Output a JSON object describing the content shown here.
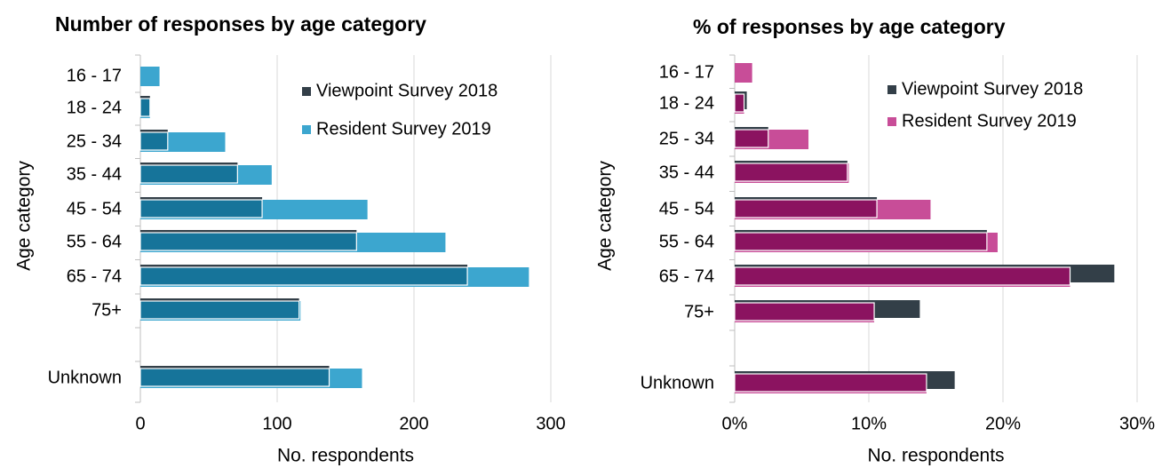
{
  "chart_data": [
    {
      "type": "bar",
      "title": "Number of responses by age category",
      "xlabel": "No. respondents",
      "ylabel": "Age category",
      "xlim": [
        0,
        300
      ],
      "xticks": [
        "0",
        "100",
        "200",
        "300"
      ],
      "categories": [
        "16 - 17",
        "18 - 24",
        "25 - 34",
        "35 - 44",
        "45 - 54",
        "55 - 64",
        "65 - 74",
        "75+",
        "",
        "Unknown"
      ],
      "series": [
        {
          "name": "Viewpoint Survey 2018",
          "color": "#333f48",
          "values": [
            0,
            7,
            20,
            71,
            89,
            158,
            239,
            116,
            null,
            138
          ]
        },
        {
          "name": "Resident Survey 2019",
          "color": "#3ca6cf",
          "values": [
            14,
            7,
            62,
            96,
            166,
            223,
            284,
            117,
            null,
            162
          ]
        }
      ],
      "overlap_color": "#16749a",
      "grid": "vertical",
      "legend": "top-right"
    },
    {
      "type": "bar",
      "title": "% of responses by age category",
      "xlabel": "No. respondents",
      "ylabel": "Age category",
      "xlim": [
        0,
        30
      ],
      "xticks": [
        "0%",
        "10%",
        "20%",
        "30%"
      ],
      "categories": [
        "16 - 17",
        "18 - 24",
        "25 - 34",
        "35 - 44",
        "45 - 54",
        "55 - 64",
        "65 - 74",
        "75+",
        "",
        "Unknown"
      ],
      "series": [
        {
          "name": "Viewpoint Survey 2018",
          "color": "#333f48",
          "values": [
            0,
            0.9,
            2.5,
            8.4,
            10.6,
            18.8,
            28.3,
            13.8,
            null,
            16.4
          ]
        },
        {
          "name": "Resident Survey 2019",
          "color": "#c84d98",
          "values": [
            1.3,
            0.7,
            5.5,
            8.5,
            14.6,
            19.6,
            25.0,
            10.4,
            null,
            14.3
          ]
        }
      ],
      "overlap_color": "#8b1360",
      "grid": "vertical",
      "legend": "top-right"
    }
  ]
}
